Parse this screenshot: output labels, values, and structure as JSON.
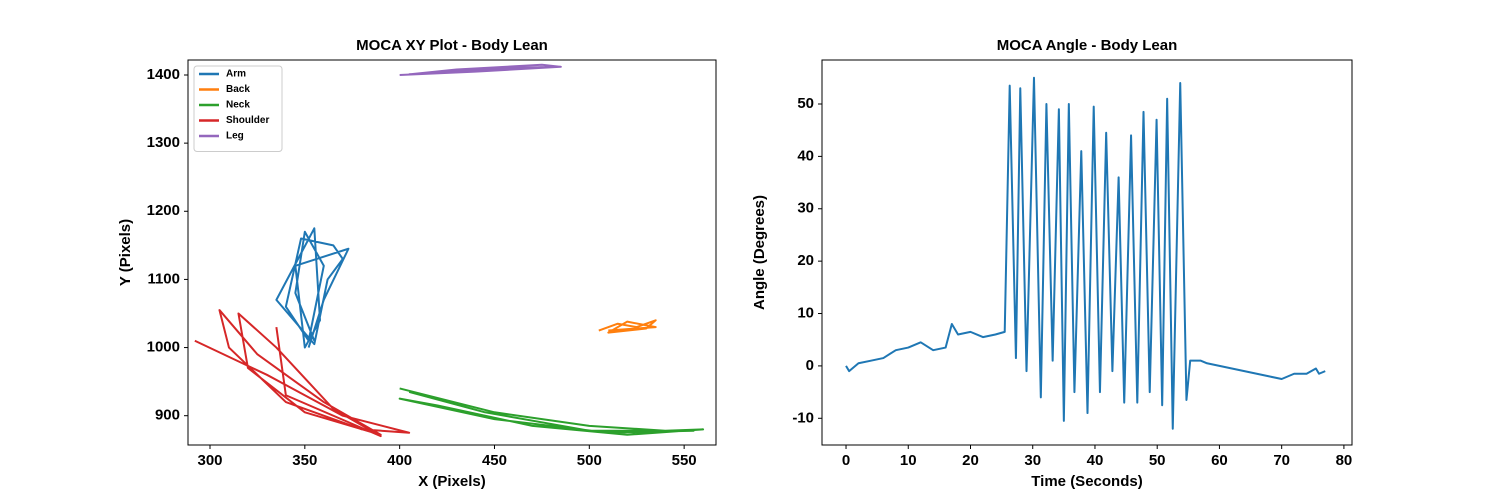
{
  "chart_data": [
    {
      "type": "line",
      "title": "MOCA XY Plot - Body Lean",
      "x_label": "X (Pixels)",
      "y_label": "Y (Pixels)",
      "xlim": [
        288.4,
        566.8
      ],
      "ylim": [
        857,
        1422
      ],
      "xticks": [
        300,
        350,
        400,
        450,
        500,
        550
      ],
      "yticks": [
        900,
        1000,
        1100,
        1200,
        1300,
        1400
      ],
      "legend": "upper left",
      "series": [
        {
          "name": "Arm",
          "color": "#1f77b4",
          "x": [
            355,
            345,
            350,
            360,
            352,
            340,
            348,
            365,
            370,
            362,
            355,
            335,
            355,
            358,
            350,
            345,
            373,
            360,
            352
          ],
          "values": [
            1010,
            1080,
            1170,
            1120,
            1010,
            1060,
            1160,
            1150,
            1130,
            1100,
            1005,
            1070,
            1175,
            1040,
            1000,
            1120,
            1145,
            1070,
            1000
          ]
        },
        {
          "name": "Back",
          "color": "#ff7f0e",
          "x": [
            505,
            515,
            525,
            535,
            530,
            510,
            520,
            535,
            510
          ],
          "values": [
            1025,
            1035,
            1030,
            1040,
            1028,
            1022,
            1038,
            1030,
            1025
          ]
        },
        {
          "name": "Neck",
          "color": "#2ca02c",
          "x": [
            400,
            450,
            500,
            540,
            560,
            520,
            470,
            420,
            400,
            450,
            510,
            555,
            500,
            445,
            405
          ],
          "values": [
            940,
            905,
            885,
            878,
            880,
            872,
            885,
            915,
            925,
            895,
            875,
            878,
            878,
            905,
            935
          ]
        },
        {
          "name": "Shoulder",
          "color": "#d62728",
          "x": [
            292,
            330,
            370,
            405,
            380,
            340,
            310,
            305,
            325,
            360,
            390,
            350,
            320,
            315,
            335,
            365,
            390,
            340,
            335
          ],
          "values": [
            1010,
            960,
            900,
            875,
            880,
            920,
            1000,
            1055,
            990,
            920,
            872,
            905,
            970,
            1050,
            1000,
            910,
            870,
            930,
            1030
          ]
        },
        {
          "name": "Leg",
          "color": "#9467bd",
          "x": [
            400,
            440,
            485,
            475,
            430,
            405,
            460,
            480
          ],
          "values": [
            1400,
            1405,
            1412,
            1415,
            1408,
            1401,
            1410,
            1412
          ]
        }
      ]
    },
    {
      "type": "line",
      "title": "MOCA Angle - Body Lean",
      "x_label": "Time (Seconds)",
      "y_label": "Angle (Degrees)",
      "xlim": [
        -3.86,
        81.3
      ],
      "ylim": [
        -15.1,
        58.4
      ],
      "xticks": [
        0,
        10,
        20,
        30,
        40,
        50,
        60,
        70,
        80
      ],
      "yticks": [
        -10,
        0,
        10,
        20,
        30,
        40,
        50
      ],
      "color": "#1f77b4",
      "x": [
        0,
        0.5,
        2,
        4,
        6,
        8,
        10,
        12,
        14,
        16,
        17,
        18,
        20,
        22,
        24,
        25.5,
        26.3,
        27.3,
        28,
        29,
        30.2,
        31.3,
        32.2,
        33.2,
        34.2,
        35,
        35.8,
        36.7,
        37.8,
        38.8,
        39.8,
        40.8,
        41.8,
        42.8,
        43.8,
        44.7,
        45.8,
        46.8,
        47.8,
        48.8,
        49.9,
        50.8,
        51.6,
        52.5,
        53.7,
        54.7,
        55.3,
        57,
        58,
        60,
        62,
        64,
        66,
        68,
        70,
        72,
        74,
        75.5,
        76,
        77
      ],
      "values": [
        0,
        -1,
        0.5,
        1,
        1.5,
        3,
        3.5,
        4.5,
        3,
        3.5,
        8,
        6,
        6.5,
        5.5,
        6,
        6.5,
        53.5,
        1.5,
        53,
        -1,
        55,
        -6,
        50,
        1,
        49,
        -10.5,
        50,
        -5,
        41,
        -9,
        49.5,
        -5,
        44.5,
        -1,
        36,
        -7,
        44,
        -7,
        48.5,
        -5,
        47,
        -7.5,
        51,
        -12,
        54,
        -6.5,
        1,
        1,
        0.5,
        0,
        -0.5,
        -1,
        -1.5,
        -2,
        -2.5,
        -1.5,
        -1.5,
        -0.5,
        -1.5,
        -1
      ]
    }
  ]
}
